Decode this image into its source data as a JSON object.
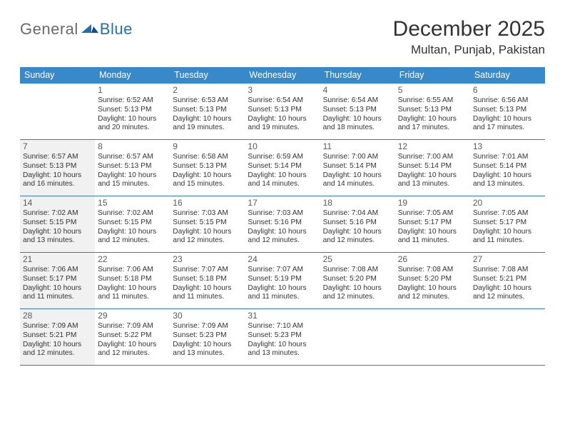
{
  "logo": {
    "general": "General",
    "blue": "Blue"
  },
  "header": {
    "month_title": "December 2025",
    "location": "Multan, Punjab, Pakistan"
  },
  "day_names": [
    "Sunday",
    "Monday",
    "Tuesday",
    "Wednesday",
    "Thursday",
    "Friday",
    "Saturday"
  ],
  "colors": {
    "header_bg": "#3789c9",
    "rule": "#3b78a8",
    "shade": "#f1f1f1",
    "text": "#333333"
  },
  "weeks": [
    [
      {
        "n": "",
        "sunrise": "",
        "sunset": "",
        "daylight": "",
        "shaded": false
      },
      {
        "n": "1",
        "sunrise": "Sunrise: 6:52 AM",
        "sunset": "Sunset: 5:13 PM",
        "daylight": "Daylight: 10 hours and 20 minutes.",
        "shaded": false
      },
      {
        "n": "2",
        "sunrise": "Sunrise: 6:53 AM",
        "sunset": "Sunset: 5:13 PM",
        "daylight": "Daylight: 10 hours and 19 minutes.",
        "shaded": false
      },
      {
        "n": "3",
        "sunrise": "Sunrise: 6:54 AM",
        "sunset": "Sunset: 5:13 PM",
        "daylight": "Daylight: 10 hours and 19 minutes.",
        "shaded": false
      },
      {
        "n": "4",
        "sunrise": "Sunrise: 6:54 AM",
        "sunset": "Sunset: 5:13 PM",
        "daylight": "Daylight: 10 hours and 18 minutes.",
        "shaded": false
      },
      {
        "n": "5",
        "sunrise": "Sunrise: 6:55 AM",
        "sunset": "Sunset: 5:13 PM",
        "daylight": "Daylight: 10 hours and 17 minutes.",
        "shaded": false
      },
      {
        "n": "6",
        "sunrise": "Sunrise: 6:56 AM",
        "sunset": "Sunset: 5:13 PM",
        "daylight": "Daylight: 10 hours and 17 minutes.",
        "shaded": false
      }
    ],
    [
      {
        "n": "7",
        "sunrise": "Sunrise: 6:57 AM",
        "sunset": "Sunset: 5:13 PM",
        "daylight": "Daylight: 10 hours and 16 minutes.",
        "shaded": true
      },
      {
        "n": "8",
        "sunrise": "Sunrise: 6:57 AM",
        "sunset": "Sunset: 5:13 PM",
        "daylight": "Daylight: 10 hours and 15 minutes.",
        "shaded": false
      },
      {
        "n": "9",
        "sunrise": "Sunrise: 6:58 AM",
        "sunset": "Sunset: 5:13 PM",
        "daylight": "Daylight: 10 hours and 15 minutes.",
        "shaded": false
      },
      {
        "n": "10",
        "sunrise": "Sunrise: 6:59 AM",
        "sunset": "Sunset: 5:14 PM",
        "daylight": "Daylight: 10 hours and 14 minutes.",
        "shaded": false
      },
      {
        "n": "11",
        "sunrise": "Sunrise: 7:00 AM",
        "sunset": "Sunset: 5:14 PM",
        "daylight": "Daylight: 10 hours and 14 minutes.",
        "shaded": false
      },
      {
        "n": "12",
        "sunrise": "Sunrise: 7:00 AM",
        "sunset": "Sunset: 5:14 PM",
        "daylight": "Daylight: 10 hours and 13 minutes.",
        "shaded": false
      },
      {
        "n": "13",
        "sunrise": "Sunrise: 7:01 AM",
        "sunset": "Sunset: 5:14 PM",
        "daylight": "Daylight: 10 hours and 13 minutes.",
        "shaded": false
      }
    ],
    [
      {
        "n": "14",
        "sunrise": "Sunrise: 7:02 AM",
        "sunset": "Sunset: 5:15 PM",
        "daylight": "Daylight: 10 hours and 13 minutes.",
        "shaded": true
      },
      {
        "n": "15",
        "sunrise": "Sunrise: 7:02 AM",
        "sunset": "Sunset: 5:15 PM",
        "daylight": "Daylight: 10 hours and 12 minutes.",
        "shaded": false
      },
      {
        "n": "16",
        "sunrise": "Sunrise: 7:03 AM",
        "sunset": "Sunset: 5:15 PM",
        "daylight": "Daylight: 10 hours and 12 minutes.",
        "shaded": false
      },
      {
        "n": "17",
        "sunrise": "Sunrise: 7:03 AM",
        "sunset": "Sunset: 5:16 PM",
        "daylight": "Daylight: 10 hours and 12 minutes.",
        "shaded": false
      },
      {
        "n": "18",
        "sunrise": "Sunrise: 7:04 AM",
        "sunset": "Sunset: 5:16 PM",
        "daylight": "Daylight: 10 hours and 12 minutes.",
        "shaded": false
      },
      {
        "n": "19",
        "sunrise": "Sunrise: 7:05 AM",
        "sunset": "Sunset: 5:17 PM",
        "daylight": "Daylight: 10 hours and 11 minutes.",
        "shaded": false
      },
      {
        "n": "20",
        "sunrise": "Sunrise: 7:05 AM",
        "sunset": "Sunset: 5:17 PM",
        "daylight": "Daylight: 10 hours and 11 minutes.",
        "shaded": false
      }
    ],
    [
      {
        "n": "21",
        "sunrise": "Sunrise: 7:06 AM",
        "sunset": "Sunset: 5:17 PM",
        "daylight": "Daylight: 10 hours and 11 minutes.",
        "shaded": true
      },
      {
        "n": "22",
        "sunrise": "Sunrise: 7:06 AM",
        "sunset": "Sunset: 5:18 PM",
        "daylight": "Daylight: 10 hours and 11 minutes.",
        "shaded": false
      },
      {
        "n": "23",
        "sunrise": "Sunrise: 7:07 AM",
        "sunset": "Sunset: 5:18 PM",
        "daylight": "Daylight: 10 hours and 11 minutes.",
        "shaded": false
      },
      {
        "n": "24",
        "sunrise": "Sunrise: 7:07 AM",
        "sunset": "Sunset: 5:19 PM",
        "daylight": "Daylight: 10 hours and 11 minutes.",
        "shaded": false
      },
      {
        "n": "25",
        "sunrise": "Sunrise: 7:08 AM",
        "sunset": "Sunset: 5:20 PM",
        "daylight": "Daylight: 10 hours and 12 minutes.",
        "shaded": false
      },
      {
        "n": "26",
        "sunrise": "Sunrise: 7:08 AM",
        "sunset": "Sunset: 5:20 PM",
        "daylight": "Daylight: 10 hours and 12 minutes.",
        "shaded": false
      },
      {
        "n": "27",
        "sunrise": "Sunrise: 7:08 AM",
        "sunset": "Sunset: 5:21 PM",
        "daylight": "Daylight: 10 hours and 12 minutes.",
        "shaded": false
      }
    ],
    [
      {
        "n": "28",
        "sunrise": "Sunrise: 7:09 AM",
        "sunset": "Sunset: 5:21 PM",
        "daylight": "Daylight: 10 hours and 12 minutes.",
        "shaded": true
      },
      {
        "n": "29",
        "sunrise": "Sunrise: 7:09 AM",
        "sunset": "Sunset: 5:22 PM",
        "daylight": "Daylight: 10 hours and 12 minutes.",
        "shaded": false
      },
      {
        "n": "30",
        "sunrise": "Sunrise: 7:09 AM",
        "sunset": "Sunset: 5:23 PM",
        "daylight": "Daylight: 10 hours and 13 minutes.",
        "shaded": false
      },
      {
        "n": "31",
        "sunrise": "Sunrise: 7:10 AM",
        "sunset": "Sunset: 5:23 PM",
        "daylight": "Daylight: 10 hours and 13 minutes.",
        "shaded": false
      },
      {
        "n": "",
        "sunrise": "",
        "sunset": "",
        "daylight": "",
        "shaded": false
      },
      {
        "n": "",
        "sunrise": "",
        "sunset": "",
        "daylight": "",
        "shaded": false
      },
      {
        "n": "",
        "sunrise": "",
        "sunset": "",
        "daylight": "",
        "shaded": false
      }
    ]
  ]
}
